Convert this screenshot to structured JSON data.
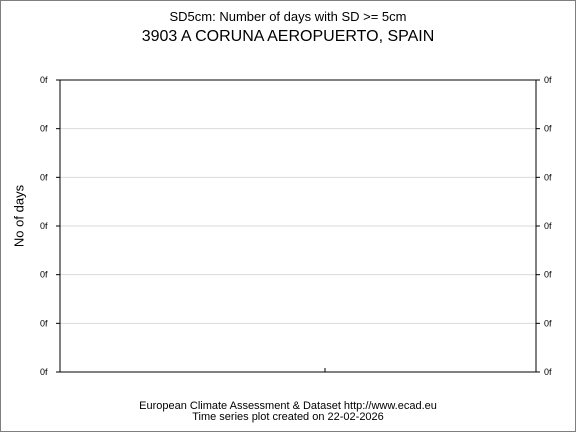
{
  "header": {
    "title": "SD5cm: Number of days with SD >= 5cm",
    "station": "3903 A CORUNA AEROPUERTO, SPAIN"
  },
  "footer": {
    "line1": "European Climate Assessment & Dataset  http://www.ecad.eu",
    "line2": "Time series plot created on 22-02-2026"
  },
  "chart_data": {
    "type": "line",
    "title": "SD5cm: Number of days with SD >= 5cm",
    "subtitle": "3903 A CORUNA AEROPUERTO, SPAIN",
    "xlabel": "",
    "ylabel": "No of days",
    "y_tick_labels": [
      "0f",
      "0f",
      "0f",
      "0f",
      "0f",
      "0f",
      "0f"
    ],
    "x_tick_labels": [],
    "series": [],
    "grid": true,
    "legend": "none",
    "colors": {
      "grid": "#d9d9d9",
      "axis": "#000000"
    }
  }
}
